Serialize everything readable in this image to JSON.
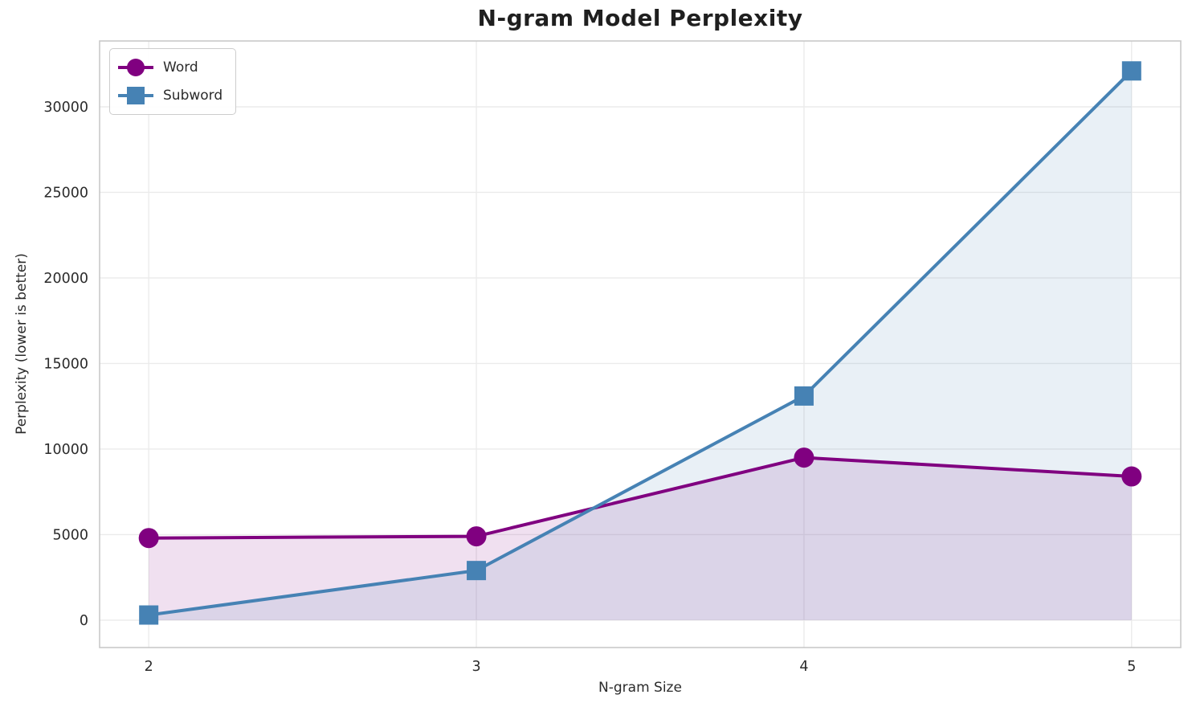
{
  "chart_data": {
    "type": "line",
    "title": "N-gram Model Perplexity",
    "xlabel": "N-gram Size",
    "ylabel": "Perplexity (lower is better)",
    "x": [
      2,
      3,
      4,
      5
    ],
    "xticks": [
      "2",
      "3",
      "4",
      "5"
    ],
    "yticks": [
      0,
      5000,
      10000,
      15000,
      20000,
      25000,
      30000
    ],
    "xlim": [
      1.85,
      5.15
    ],
    "ylim": [
      -1600,
      33850
    ],
    "grid": true,
    "legend_position": "upper-left",
    "colors": {
      "grid": "#ebebeb",
      "spine": "#c9c9c9",
      "tick_text": "#2b2b2b"
    },
    "series": [
      {
        "name": "Word",
        "values": [
          4800,
          4900,
          9500,
          8400
        ],
        "color": "#800080",
        "marker": "circle",
        "fill_to_zero": true,
        "fill_alpha": 0.12
      },
      {
        "name": "Subword",
        "values": [
          300,
          2900,
          13100,
          32100
        ],
        "color": "#4682B4",
        "marker": "square",
        "fill_to_zero": true,
        "fill_alpha": 0.12
      }
    ]
  }
}
